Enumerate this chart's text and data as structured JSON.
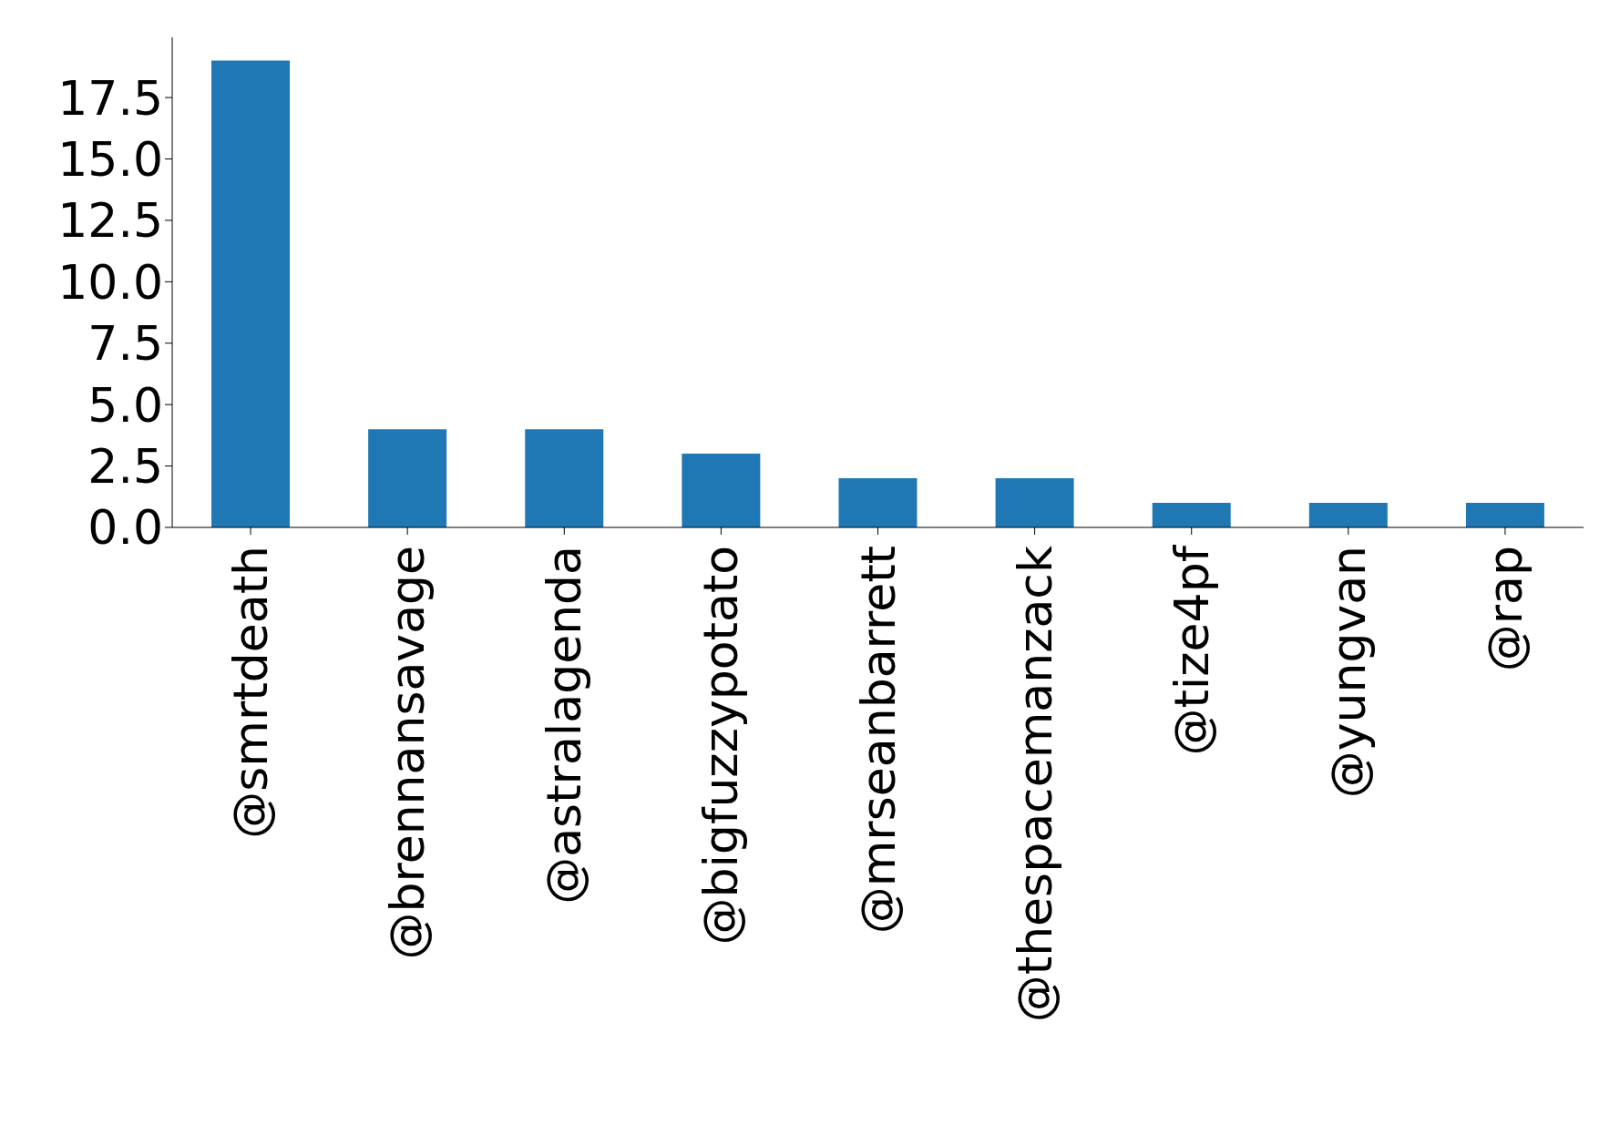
{
  "chart_data": {
    "type": "bar",
    "categories": [
      "@smrtdeath",
      "@brennansavage",
      "@astralagenda",
      "@bigfuzzypotato",
      "@mrseanbarrett",
      "@thespacemanzack",
      "@tize4pf",
      "@yungvan",
      "@rap"
    ],
    "values": [
      19,
      4,
      4,
      3,
      2,
      2,
      1,
      1,
      1
    ],
    "color": "#1f77b4",
    "ylim": [
      0,
      19.95
    ],
    "yticks": [
      {
        "value": 0,
        "label": "0.0"
      },
      {
        "value": 2.5,
        "label": "2.5"
      },
      {
        "value": 5,
        "label": "5.0"
      },
      {
        "value": 7.5,
        "label": "7.5"
      },
      {
        "value": 10,
        "label": "10.0"
      },
      {
        "value": 12.5,
        "label": "12.5"
      },
      {
        "value": 15,
        "label": "15.0"
      },
      {
        "value": 17.5,
        "label": "17.5"
      }
    ],
    "grid": false,
    "legend": false
  }
}
